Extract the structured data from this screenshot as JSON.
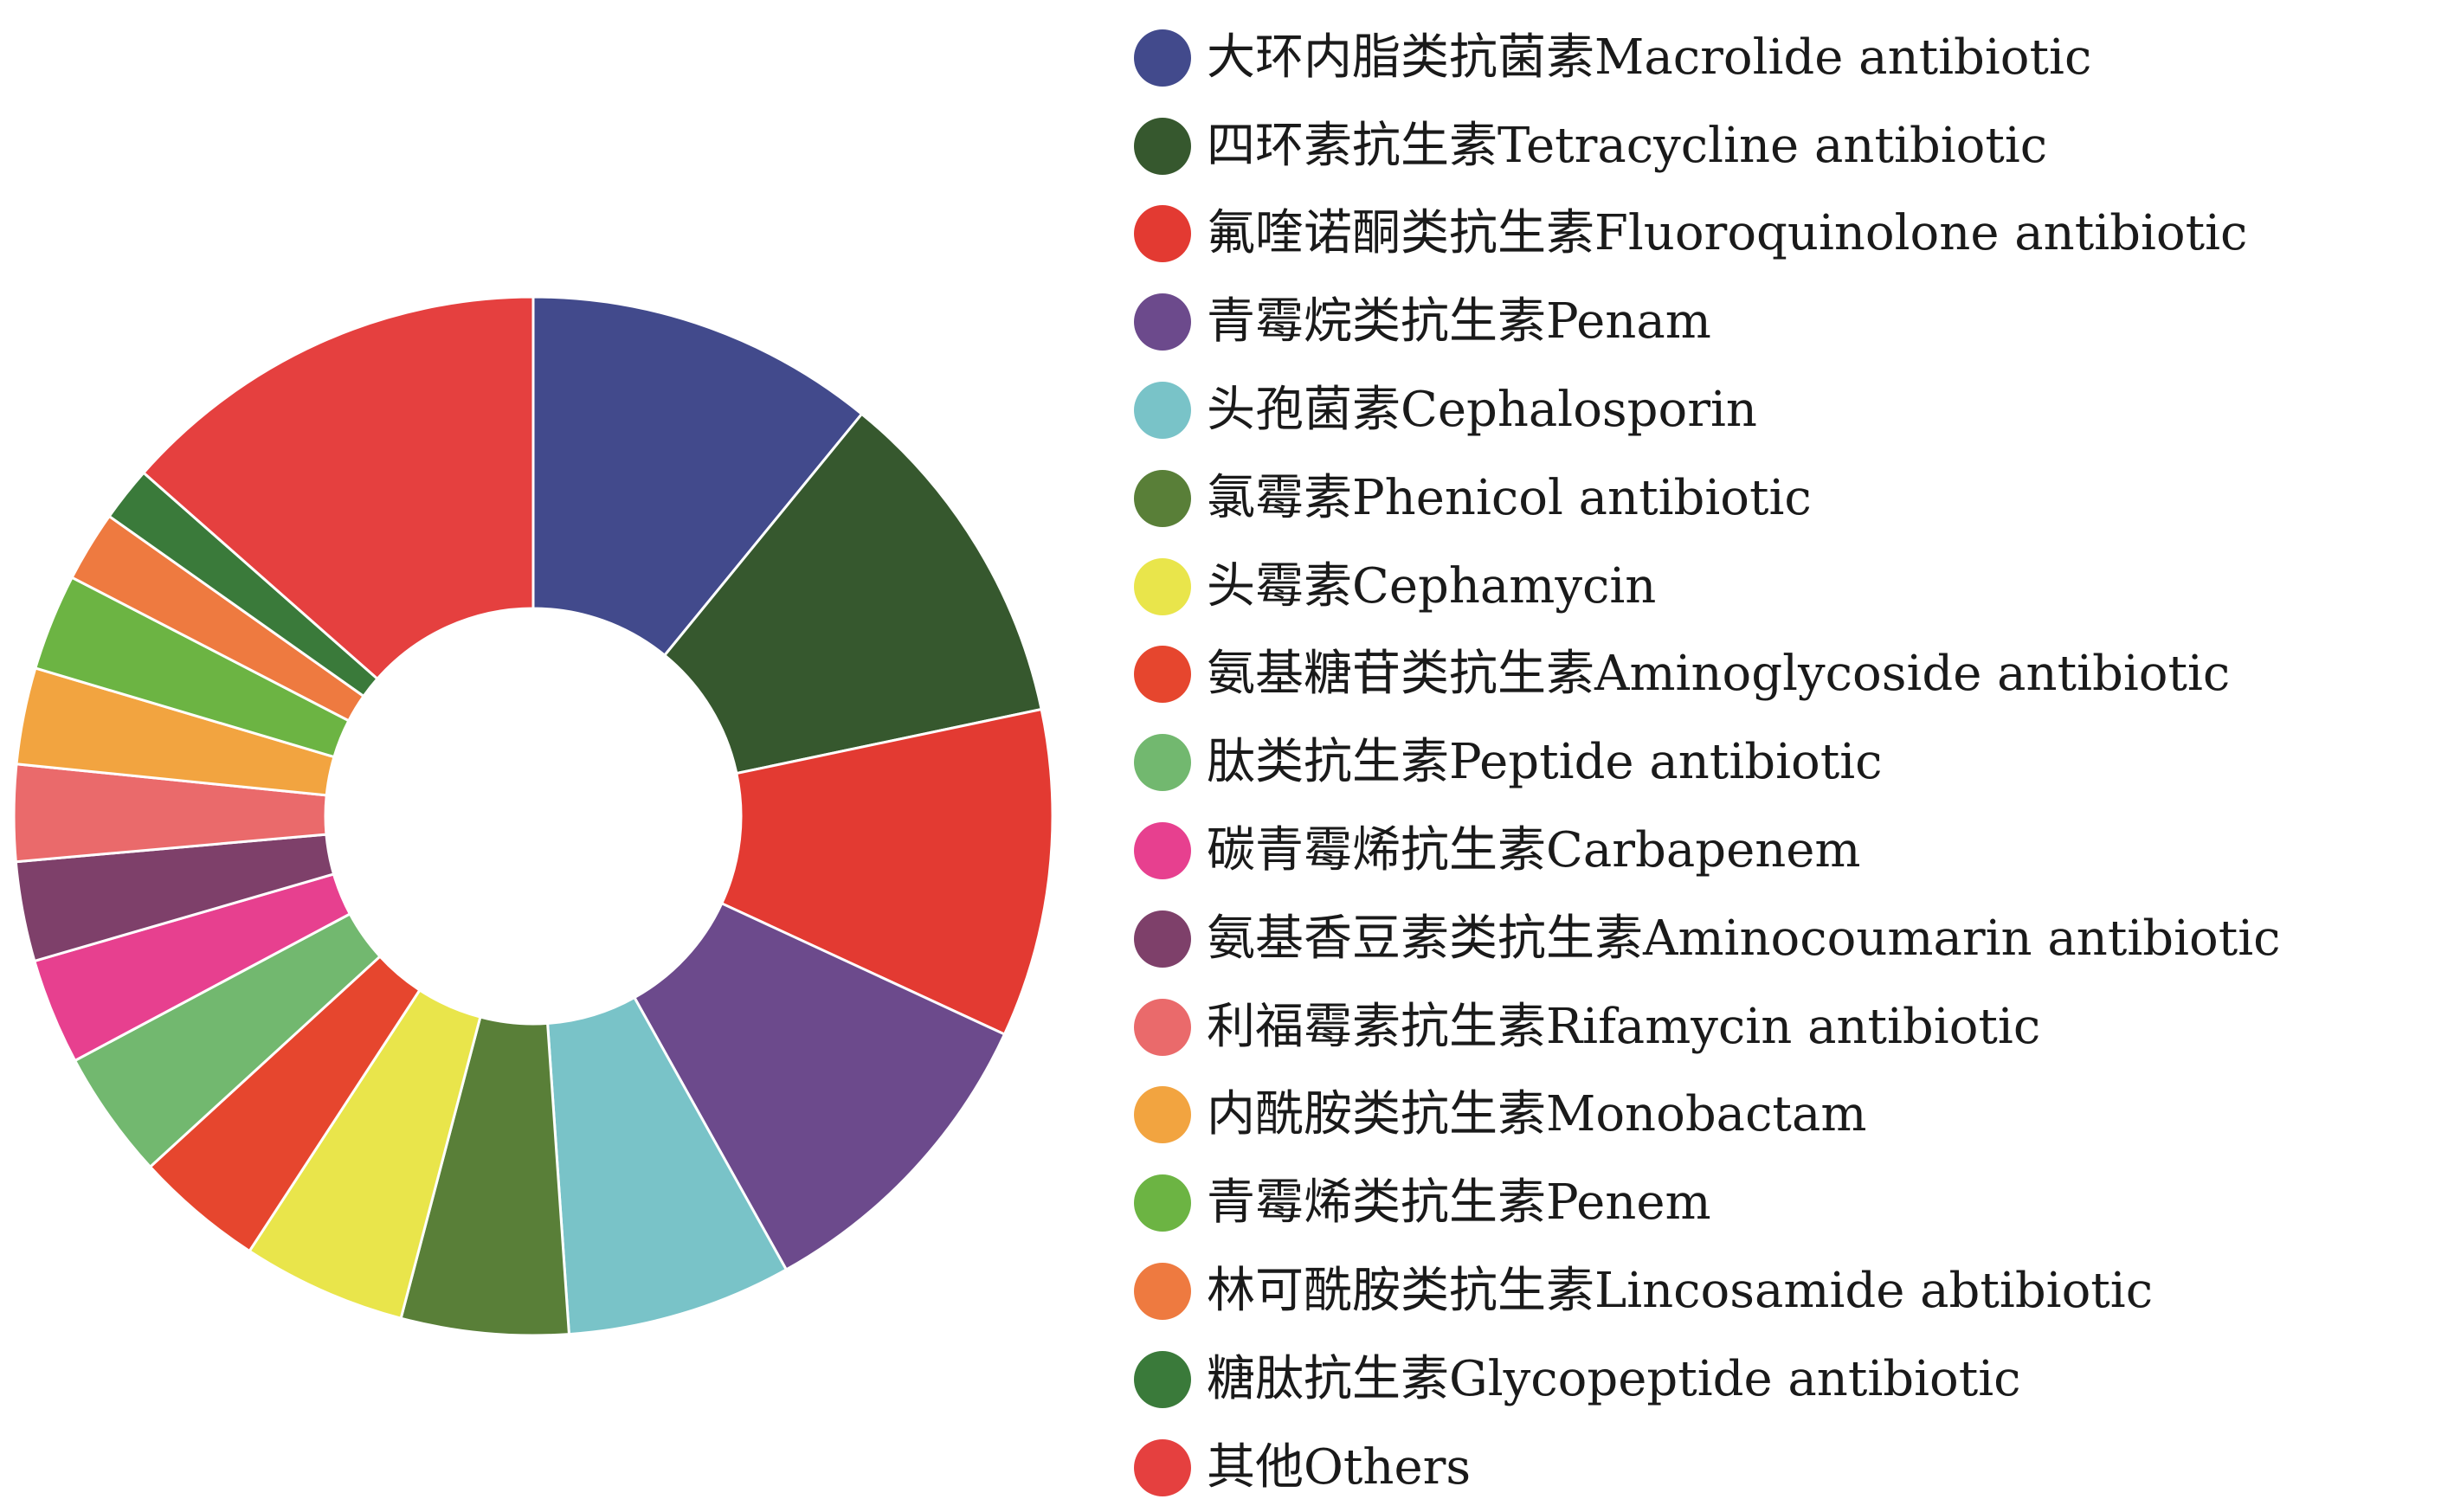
{
  "chart_data": {
    "type": "pie",
    "title": "",
    "categories": [
      "大环内脂类抗菌素Macrolide antibiotic",
      "四环素抗生素Tetracycline antibiotic",
      "氟喹诺酮类抗生素Fluoroquinolone antibiotic",
      "青霉烷类抗生素Penam",
      "头孢菌素Cephalosporin",
      "氯霉素Phenicol antibiotic",
      "头霉素Cephamycin",
      "氨基糖苷类抗生素Aminoglycoside antibiotic",
      "肽类抗生素Peptide antibiotic",
      "碳青霉烯抗生素Carbapenem",
      "氨基香豆素类抗生素Aminocoumarin antibiotic",
      "利福霉素抗生素Rifamycin antibiotic",
      "内酰胺类抗生素Monobactam",
      "青霉烯类抗生素Penem",
      "林可酰胺类抗生素Lincosamide abtibiotic",
      "糖肽抗生素Glycopeptide antibiotic",
      "其他Others"
    ],
    "values": [
      10.9,
      10.8,
      10.2,
      10.0,
      7.0,
      5.2,
      5.1,
      4.0,
      4.0,
      3.3,
      3.1,
      3.0,
      3.0,
      3.0,
      2.2,
      1.7,
      13.5
    ],
    "colors": [
      "#424a8c",
      "#36582e",
      "#e33a32",
      "#6c4a8c",
      "#79c3c8",
      "#597f38",
      "#e9e54b",
      "#e6462e",
      "#72b86f",
      "#e7408f",
      "#7e406a",
      "#ea6a6b",
      "#f2a440",
      "#6cb443",
      "#ee7a40",
      "#3a7a3a",
      "#e5403f"
    ],
    "legend": "right",
    "donut": true
  }
}
